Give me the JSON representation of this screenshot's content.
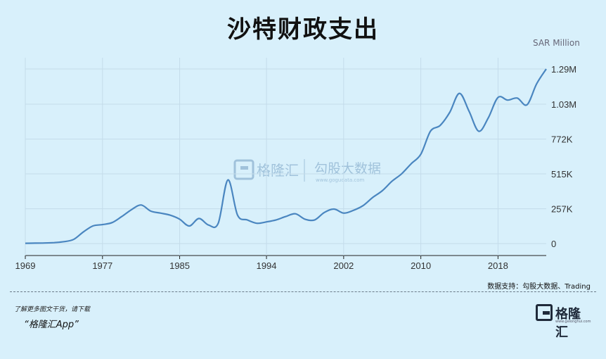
{
  "header": {
    "title": "沙特财政支出",
    "unit": "SAR Million"
  },
  "chart_data": {
    "type": "line",
    "title": "沙特财政支出",
    "ylabel": "SAR Million",
    "xlabel": "",
    "xlim": [
      1969,
      2023
    ],
    "ylim": [
      0,
      1290000
    ],
    "x_ticks": [
      "1969",
      "1977",
      "1985",
      "1994",
      "2002",
      "2010",
      "2018"
    ],
    "y_ticks": [
      {
        "value": 0,
        "label": "0"
      },
      {
        "value": 257000,
        "label": "257K"
      },
      {
        "value": 515000,
        "label": "515K"
      },
      {
        "value": 772000,
        "label": "772K"
      },
      {
        "value": 1030000,
        "label": "1.03M"
      },
      {
        "value": 1290000,
        "label": "1.29M"
      }
    ],
    "grid": true,
    "color": "#4a86c0",
    "series": [
      {
        "x": [
          1969,
          1970,
          1971,
          1972,
          1973,
          1974,
          1975,
          1976,
          1977,
          1978,
          1979,
          1980,
          1981,
          1982,
          1983,
          1984,
          1985,
          1986,
          1987,
          1988,
          1989,
          1990,
          1991,
          1992,
          1993,
          1994,
          1995,
          1996,
          1997,
          1998,
          1999,
          2000,
          2001,
          2002,
          2003,
          2004,
          2005,
          2006,
          2007,
          2008,
          2009,
          2010,
          2011,
          2012,
          2013,
          2014,
          2015,
          2016,
          2017,
          2018,
          2019,
          2020,
          2021,
          2022,
          2023
        ],
        "y": [
          2000,
          3000,
          4000,
          7000,
          14000,
          30000,
          85000,
          130000,
          140000,
          155000,
          200000,
          250000,
          285000,
          240000,
          225000,
          210000,
          180000,
          130000,
          185000,
          137000,
          150000,
          470000,
          210000,
          175000,
          150000,
          160000,
          175000,
          200000,
          220000,
          180000,
          175000,
          230000,
          255000,
          225000,
          245000,
          280000,
          340000,
          390000,
          460000,
          515000,
          590000,
          660000,
          830000,
          873000,
          970000,
          1110000,
          978000,
          830000,
          930000,
          1080000,
          1060000,
          1075000,
          1025000,
          1180000,
          1290000
        ]
      }
    ]
  },
  "watermark": {
    "logo": "格隆汇",
    "text": "勾股大数据",
    "sub": "www.gogudata.com"
  },
  "footer": {
    "source": "数据支持：勾股大数据、Trading",
    "cta_line1": "了解更多图文干货，请下载",
    "cta_line2": "“格隆汇App”",
    "logo_text": "格隆汇",
    "logo_sub": "www.gelonghui.com"
  }
}
